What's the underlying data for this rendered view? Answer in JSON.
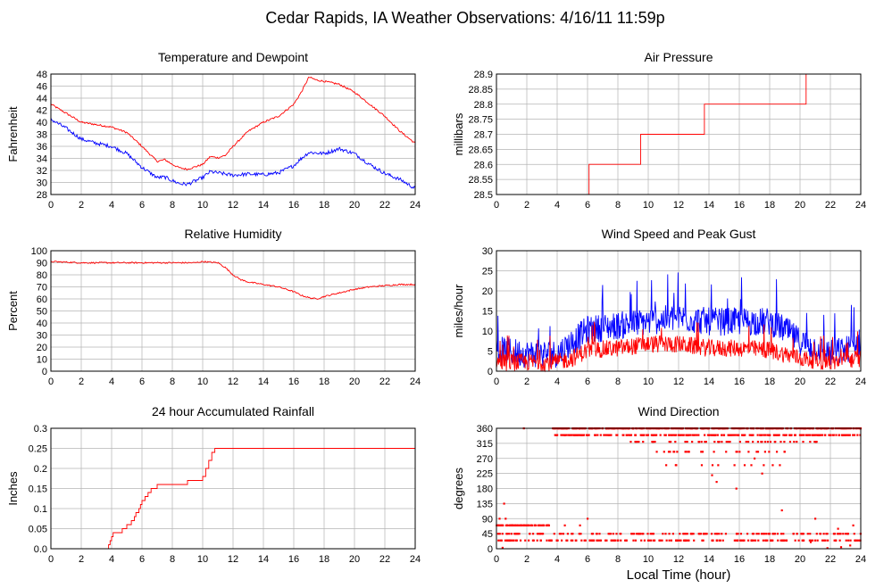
{
  "page_title": "Cedar Rapids, IA Weather Observations: 4/16/11 11:59p",
  "xlabel": "Local Time (hour)",
  "colors": {
    "red": "#ff0000",
    "blue": "#0000ff",
    "grid": "#b4b4b4"
  },
  "chart_data": [
    {
      "id": "temp",
      "type": "line",
      "title": "Temperature and Dewpoint",
      "ylabel": "Fahrenheit",
      "xlim": [
        0,
        24
      ],
      "ylim": [
        28,
        48
      ],
      "xticks": [
        "0",
        "2",
        "4",
        "6",
        "8",
        "10",
        "12",
        "14",
        "16",
        "18",
        "20",
        "22",
        "24"
      ],
      "yticks": [
        "28",
        "30",
        "32",
        "34",
        "36",
        "38",
        "40",
        "42",
        "44",
        "46",
        "48"
      ],
      "grid": true,
      "series": [
        {
          "color": "#ff0000",
          "noise": 0.15,
          "points": [
            [
              0,
              43
            ],
            [
              1,
              41.5
            ],
            [
              2,
              40
            ],
            [
              3,
              39.6
            ],
            [
              4,
              39.2
            ],
            [
              5,
              38.3
            ],
            [
              6,
              36
            ],
            [
              7,
              33.5
            ],
            [
              7.5,
              33.8
            ],
            [
              8,
              33
            ],
            [
              8.5,
              32.4
            ],
            [
              9,
              32.2
            ],
            [
              10,
              33
            ],
            [
              10.5,
              34.3
            ],
            [
              11,
              34.1
            ],
            [
              11.5,
              34.5
            ],
            [
              12,
              36
            ],
            [
              13,
              38.5
            ],
            [
              14,
              40
            ],
            [
              15,
              41
            ],
            [
              16,
              43
            ],
            [
              16.5,
              45
            ],
            [
              17,
              47.5
            ],
            [
              17.5,
              47
            ],
            [
              18,
              46.8
            ],
            [
              19,
              46.3
            ],
            [
              20,
              45
            ],
            [
              21,
              43
            ],
            [
              22,
              41
            ],
            [
              23,
              38.5
            ],
            [
              24,
              36.5
            ]
          ]
        },
        {
          "color": "#0000ff",
          "noise": 0.3,
          "points": [
            [
              0,
              40.5
            ],
            [
              1,
              39
            ],
            [
              2,
              37.2
            ],
            [
              3,
              36.5
            ],
            [
              4,
              36
            ],
            [
              5,
              34.8
            ],
            [
              6,
              32.5
            ],
            [
              7,
              30.8
            ],
            [
              7.5,
              30.9
            ],
            [
              8,
              30.3
            ],
            [
              8.5,
              29.8
            ],
            [
              9,
              29.7
            ],
            [
              10,
              30.8
            ],
            [
              10.5,
              31.8
            ],
            [
              11,
              31.6
            ],
            [
              12,
              31.2
            ],
            [
              13,
              31.4
            ],
            [
              14,
              31.3
            ],
            [
              15,
              31.6
            ],
            [
              16,
              32.8
            ],
            [
              16.5,
              34
            ],
            [
              17,
              35
            ],
            [
              18,
              34.8
            ],
            [
              19,
              35.6
            ],
            [
              20,
              34.8
            ],
            [
              21,
              33
            ],
            [
              22,
              31.5
            ],
            [
              23,
              30.5
            ],
            [
              24,
              29
            ]
          ]
        }
      ]
    },
    {
      "id": "press",
      "type": "line",
      "title": "Air Pressure",
      "ylabel": "millibars",
      "xlim": [
        0,
        24
      ],
      "ylim": [
        28.5,
        28.9
      ],
      "xticks": [
        "0",
        "2",
        "4",
        "6",
        "8",
        "10",
        "12",
        "14",
        "16",
        "18",
        "20",
        "22",
        "24"
      ],
      "yticks": [
        "28.5",
        "28.55",
        "28.6",
        "28.65",
        "28.7",
        "28.75",
        "28.8",
        "28.85",
        "28.9"
      ],
      "grid": true,
      "series": [
        {
          "color": "#ff0000",
          "step": true,
          "points": [
            [
              0,
              28.5
            ],
            [
              6.1,
              28.5
            ],
            [
              6.1,
              28.6
            ],
            [
              9.5,
              28.6
            ],
            [
              9.5,
              28.7
            ],
            [
              13.7,
              28.7
            ],
            [
              13.7,
              28.8
            ],
            [
              20.4,
              28.8
            ],
            [
              20.4,
              28.9
            ],
            [
              24,
              28.9
            ]
          ]
        }
      ]
    },
    {
      "id": "rh",
      "type": "line",
      "title": "Relative Humidity",
      "ylabel": "Percent",
      "xlim": [
        0,
        24
      ],
      "ylim": [
        0,
        100
      ],
      "xticks": [
        "0",
        "2",
        "4",
        "6",
        "8",
        "10",
        "12",
        "14",
        "16",
        "18",
        "20",
        "22",
        "24"
      ],
      "yticks": [
        "0",
        "10",
        "20",
        "30",
        "40",
        "50",
        "60",
        "70",
        "80",
        "90",
        "100"
      ],
      "grid": true,
      "series": [
        {
          "color": "#ff0000",
          "noise": 0.6,
          "points": [
            [
              0,
              91
            ],
            [
              1,
              90.5
            ],
            [
              2,
              90
            ],
            [
              4,
              90
            ],
            [
              6,
              90
            ],
            [
              8,
              90
            ],
            [
              9.5,
              90
            ],
            [
              10,
              91
            ],
            [
              11,
              90
            ],
            [
              11.5,
              86
            ],
            [
              12,
              80
            ],
            [
              12.5,
              76
            ],
            [
              13,
              74
            ],
            [
              14,
              72
            ],
            [
              15,
              70
            ],
            [
              16,
              66
            ],
            [
              16.5,
              63
            ],
            [
              17,
              61
            ],
            [
              17.5,
              60
            ],
            [
              18,
              62
            ],
            [
              19,
              65
            ],
            [
              20,
              68
            ],
            [
              21,
              70
            ],
            [
              22,
              71
            ],
            [
              23,
              72
            ],
            [
              24,
              72
            ]
          ]
        }
      ]
    },
    {
      "id": "wind",
      "type": "line",
      "title": "Wind Speed and Peak Gust",
      "ylabel": "miles/hour",
      "xlim": [
        0,
        24
      ],
      "ylim": [
        0,
        30
      ],
      "xticks": [
        "0",
        "2",
        "4",
        "6",
        "8",
        "10",
        "12",
        "14",
        "16",
        "18",
        "20",
        "22",
        "24"
      ],
      "yticks": [
        "0",
        "5",
        "10",
        "15",
        "20",
        "25",
        "30"
      ],
      "grid": true,
      "series": [
        {
          "color": "#0000ff",
          "noise": 3.2,
          "spiky": true,
          "points": [
            [
              0,
              5
            ],
            [
              2,
              4
            ],
            [
              4,
              4
            ],
            [
              5,
              7
            ],
            [
              6,
              10
            ],
            [
              8,
              11
            ],
            [
              10,
              12
            ],
            [
              12,
              13
            ],
            [
              14,
              12
            ],
            [
              16,
              12
            ],
            [
              18,
              12
            ],
            [
              19,
              10
            ],
            [
              20,
              7
            ],
            [
              22,
              4
            ],
            [
              23,
              5
            ],
            [
              24,
              7
            ]
          ]
        },
        {
          "color": "#ff0000",
          "noise": 2.0,
          "spiky": true,
          "points": [
            [
              0,
              2
            ],
            [
              2,
              2
            ],
            [
              4,
              2
            ],
            [
              5,
              3
            ],
            [
              6,
              5
            ],
            [
              8,
              5.5
            ],
            [
              10,
              6.5
            ],
            [
              12,
              6.5
            ],
            [
              14,
              5.5
            ],
            [
              16,
              5.5
            ],
            [
              18,
              5
            ],
            [
              20,
              3
            ],
            [
              22,
              2
            ],
            [
              24,
              3
            ]
          ]
        }
      ]
    },
    {
      "id": "rain",
      "type": "line",
      "title": "24 hour Accumulated Rainfall",
      "ylabel": "Inches",
      "xlim": [
        0,
        24
      ],
      "ylim": [
        0,
        0.3
      ],
      "xticks": [
        "0",
        "2",
        "4",
        "6",
        "8",
        "10",
        "12",
        "14",
        "16",
        "18",
        "20",
        "22",
        "24"
      ],
      "yticks": [
        "0.0",
        "0.05",
        "0.1",
        "0.15",
        "0.2",
        "0.25",
        "0.3"
      ],
      "grid": true,
      "series": [
        {
          "color": "#ff0000",
          "step": true,
          "points": [
            [
              0,
              0
            ],
            [
              3.8,
              0
            ],
            [
              3.8,
              0.01
            ],
            [
              3.9,
              0.01
            ],
            [
              3.9,
              0.02
            ],
            [
              4.0,
              0.02
            ],
            [
              4.0,
              0.03
            ],
            [
              4.1,
              0.03
            ],
            [
              4.1,
              0.04
            ],
            [
              4.7,
              0.04
            ],
            [
              4.7,
              0.05
            ],
            [
              5.0,
              0.05
            ],
            [
              5.0,
              0.06
            ],
            [
              5.3,
              0.06
            ],
            [
              5.3,
              0.07
            ],
            [
              5.5,
              0.07
            ],
            [
              5.5,
              0.08
            ],
            [
              5.6,
              0.08
            ],
            [
              5.6,
              0.09
            ],
            [
              5.8,
              0.09
            ],
            [
              5.8,
              0.1
            ],
            [
              5.9,
              0.1
            ],
            [
              5.9,
              0.11
            ],
            [
              6.0,
              0.11
            ],
            [
              6.0,
              0.12
            ],
            [
              6.2,
              0.12
            ],
            [
              6.2,
              0.13
            ],
            [
              6.4,
              0.13
            ],
            [
              6.4,
              0.14
            ],
            [
              6.6,
              0.14
            ],
            [
              6.6,
              0.15
            ],
            [
              7.0,
              0.15
            ],
            [
              7.0,
              0.16
            ],
            [
              9.0,
              0.16
            ],
            [
              9.0,
              0.17
            ],
            [
              10.0,
              0.17
            ],
            [
              10.0,
              0.18
            ],
            [
              10.2,
              0.18
            ],
            [
              10.2,
              0.2
            ],
            [
              10.4,
              0.2
            ],
            [
              10.4,
              0.22
            ],
            [
              10.6,
              0.22
            ],
            [
              10.6,
              0.24
            ],
            [
              10.8,
              0.24
            ],
            [
              10.8,
              0.25
            ],
            [
              24,
              0.25
            ]
          ]
        }
      ]
    },
    {
      "id": "wdir",
      "type": "scatter",
      "title": "Wind Direction",
      "ylabel": "degrees",
      "xlim": [
        0,
        24
      ],
      "ylim": [
        0,
        360
      ],
      "xticks": [
        "0",
        "2",
        "4",
        "6",
        "8",
        "10",
        "12",
        "14",
        "16",
        "18",
        "20",
        "22",
        "24"
      ],
      "yticks": [
        "0",
        "45",
        "90",
        "135",
        "180",
        "225",
        "270",
        "315",
        "360"
      ],
      "grid": true,
      "series": [
        {
          "color": "#ff0000",
          "bands": [
            {
              "y": 360,
              "x0": 3.7,
              "x1": 24,
              "density": 18
            },
            {
              "y": 340,
              "x0": 3.8,
              "x1": 24,
              "density": 12
            },
            {
              "y": 320,
              "x0": 8.5,
              "x1": 22,
              "density": 4
            },
            {
              "y": 290,
              "x0": 10.5,
              "x1": 19,
              "density": 3
            },
            {
              "y": 250,
              "x0": 11,
              "x1": 19,
              "density": 1.5
            },
            {
              "y": 70,
              "x0": 0,
              "x1": 3.5,
              "density": 20
            },
            {
              "y": 45,
              "x0": 0,
              "x1": 24,
              "density": 6
            },
            {
              "y": 25,
              "x0": 0,
              "x1": 24,
              "density": 7
            }
          ],
          "extra": [
            [
              0.5,
              135
            ],
            [
              0.2,
              90
            ],
            [
              0.6,
              90
            ],
            [
              1.8,
              360
            ],
            [
              6,
              90
            ],
            [
              5.5,
              70
            ],
            [
              4.5,
              70
            ],
            [
              14.2,
              220
            ],
            [
              14.5,
              200
            ],
            [
              15.8,
              180
            ],
            [
              17,
              270
            ],
            [
              17.5,
              225
            ],
            [
              18.8,
              115
            ],
            [
              21,
              90
            ],
            [
              20.7,
              20
            ],
            [
              22.5,
              60
            ],
            [
              23.5,
              70
            ],
            [
              23.3,
              10
            ],
            [
              22.7,
              5
            ],
            [
              21.8,
              2
            ],
            [
              0.4,
              3
            ]
          ]
        }
      ]
    }
  ]
}
